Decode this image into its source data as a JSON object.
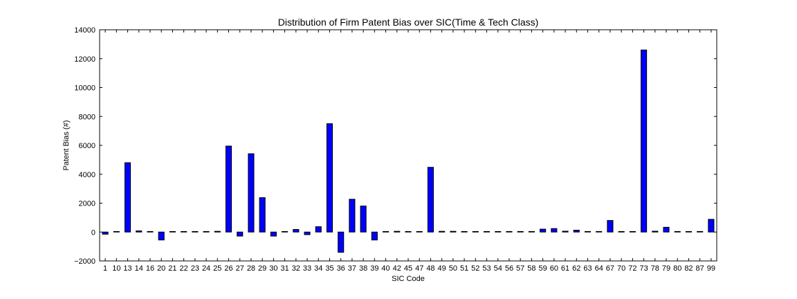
{
  "chart_data": {
    "type": "bar",
    "title": "Distribution of Firm Patent Bias over SIC(Time & Tech Class)",
    "xlabel": "SIC Code",
    "ylabel": "Patent Bias (#)",
    "ylim": [
      -2000,
      14000
    ],
    "yticks": [
      -2000,
      0,
      2000,
      4000,
      6000,
      8000,
      10000,
      12000,
      14000
    ],
    "ytick_labels": [
      "−2000",
      "0",
      "2000",
      "4000",
      "6000",
      "8000",
      "10000",
      "12000",
      "14000"
    ],
    "grid": false,
    "legend": "none",
    "bar_color": "#0000ff",
    "edge_color": "#000000",
    "categories": [
      "1",
      "10",
      "13",
      "14",
      "16",
      "20",
      "21",
      "22",
      "23",
      "24",
      "25",
      "26",
      "27",
      "28",
      "29",
      "30",
      "31",
      "32",
      "33",
      "34",
      "35",
      "36",
      "37",
      "38",
      "39",
      "40",
      "42",
      "45",
      "47",
      "48",
      "49",
      "50",
      "51",
      "52",
      "53",
      "54",
      "56",
      "57",
      "58",
      "59",
      "60",
      "61",
      "62",
      "63",
      "64",
      "67",
      "70",
      "72",
      "73",
      "78",
      "79",
      "80",
      "82",
      "87",
      "99"
    ],
    "values": [
      -150,
      0,
      4800,
      80,
      0,
      -550,
      0,
      0,
      0,
      0,
      50,
      5950,
      -280,
      5420,
      2380,
      -280,
      0,
      180,
      -180,
      370,
      7500,
      -1400,
      2270,
      1800,
      -550,
      0,
      50,
      0,
      0,
      4480,
      50,
      50,
      0,
      0,
      0,
      0,
      0,
      0,
      0,
      200,
      240,
      60,
      130,
      0,
      0,
      800,
      0,
      0,
      12600,
      60,
      330,
      30,
      0,
      40,
      880
    ]
  }
}
